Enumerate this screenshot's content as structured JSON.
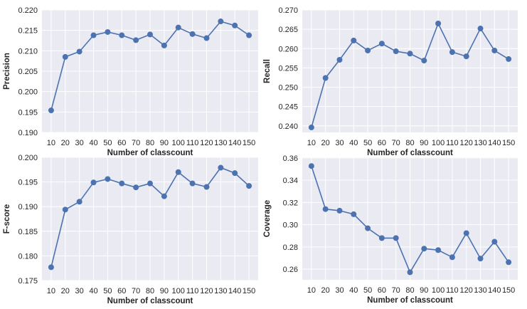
{
  "chart_data": [
    {
      "type": "line",
      "title": "",
      "xlabel": "Number of classcount",
      "ylabel": "Precision",
      "categories": [
        "10",
        "20",
        "30",
        "40",
        "50",
        "60",
        "70",
        "80",
        "90",
        "100",
        "110",
        "120",
        "130",
        "140",
        "150"
      ],
      "values": [
        0.1954,
        0.2085,
        0.2098,
        0.2138,
        0.2146,
        0.2138,
        0.2126,
        0.214,
        0.2113,
        0.2157,
        0.2141,
        0.2131,
        0.2172,
        0.2162,
        0.2138
      ],
      "ylim": [
        0.19,
        0.22
      ],
      "yticks": [
        "0.190",
        "0.195",
        "0.200",
        "0.205",
        "0.210",
        "0.215",
        "0.220"
      ],
      "grid": true
    },
    {
      "type": "line",
      "title": "",
      "xlabel": "Number of classcount",
      "ylabel": "Recall",
      "categories": [
        "10",
        "20",
        "30",
        "40",
        "50",
        "60",
        "70",
        "80",
        "90",
        "100",
        "110",
        "120",
        "130",
        "140",
        "150"
      ],
      "values": [
        0.2396,
        0.2524,
        0.2571,
        0.2621,
        0.2595,
        0.2613,
        0.2593,
        0.2587,
        0.2569,
        0.2665,
        0.2591,
        0.258,
        0.2652,
        0.2595,
        0.2573
      ],
      "ylim": [
        0.2383,
        0.27
      ],
      "yticks": [
        "0.240",
        "0.245",
        "0.250",
        "0.255",
        "0.260",
        "0.265",
        "0.270"
      ],
      "grid": true
    },
    {
      "type": "line",
      "title": "",
      "xlabel": "Number of classcount",
      "ylabel": "F-score",
      "categories": [
        "10",
        "20",
        "30",
        "40",
        "50",
        "60",
        "70",
        "80",
        "90",
        "100",
        "110",
        "120",
        "130",
        "140",
        "150"
      ],
      "values": [
        0.1777,
        0.1894,
        0.191,
        0.1949,
        0.1956,
        0.1947,
        0.1939,
        0.1947,
        0.1921,
        0.197,
        0.1947,
        0.194,
        0.1979,
        0.1968,
        0.1942
      ],
      "ylim": [
        0.175,
        0.2
      ],
      "yticks": [
        "0.175",
        "0.180",
        "0.185",
        "0.190",
        "0.195",
        "0.200"
      ],
      "grid": true
    },
    {
      "type": "line",
      "title": "",
      "xlabel": "Number of classcount",
      "ylabel": "Coverage",
      "categories": [
        "10",
        "20",
        "30",
        "40",
        "50",
        "60",
        "70",
        "80",
        "90",
        "100",
        "110",
        "120",
        "130",
        "140",
        "150"
      ],
      "values": [
        0.3527,
        0.314,
        0.3126,
        0.3094,
        0.2968,
        0.288,
        0.288,
        0.2573,
        0.2785,
        0.2772,
        0.2708,
        0.2924,
        0.2696,
        0.2847,
        0.2663
      ],
      "ylim": [
        0.2505,
        0.3605
      ],
      "yticks": [
        "0.26",
        "0.28",
        "0.30",
        "0.32",
        "0.34",
        "0.36"
      ],
      "grid": true
    }
  ],
  "colors": {
    "line": "#4c72b0",
    "plot_bg": "#eaeaf2",
    "grid": "#ffffff"
  }
}
